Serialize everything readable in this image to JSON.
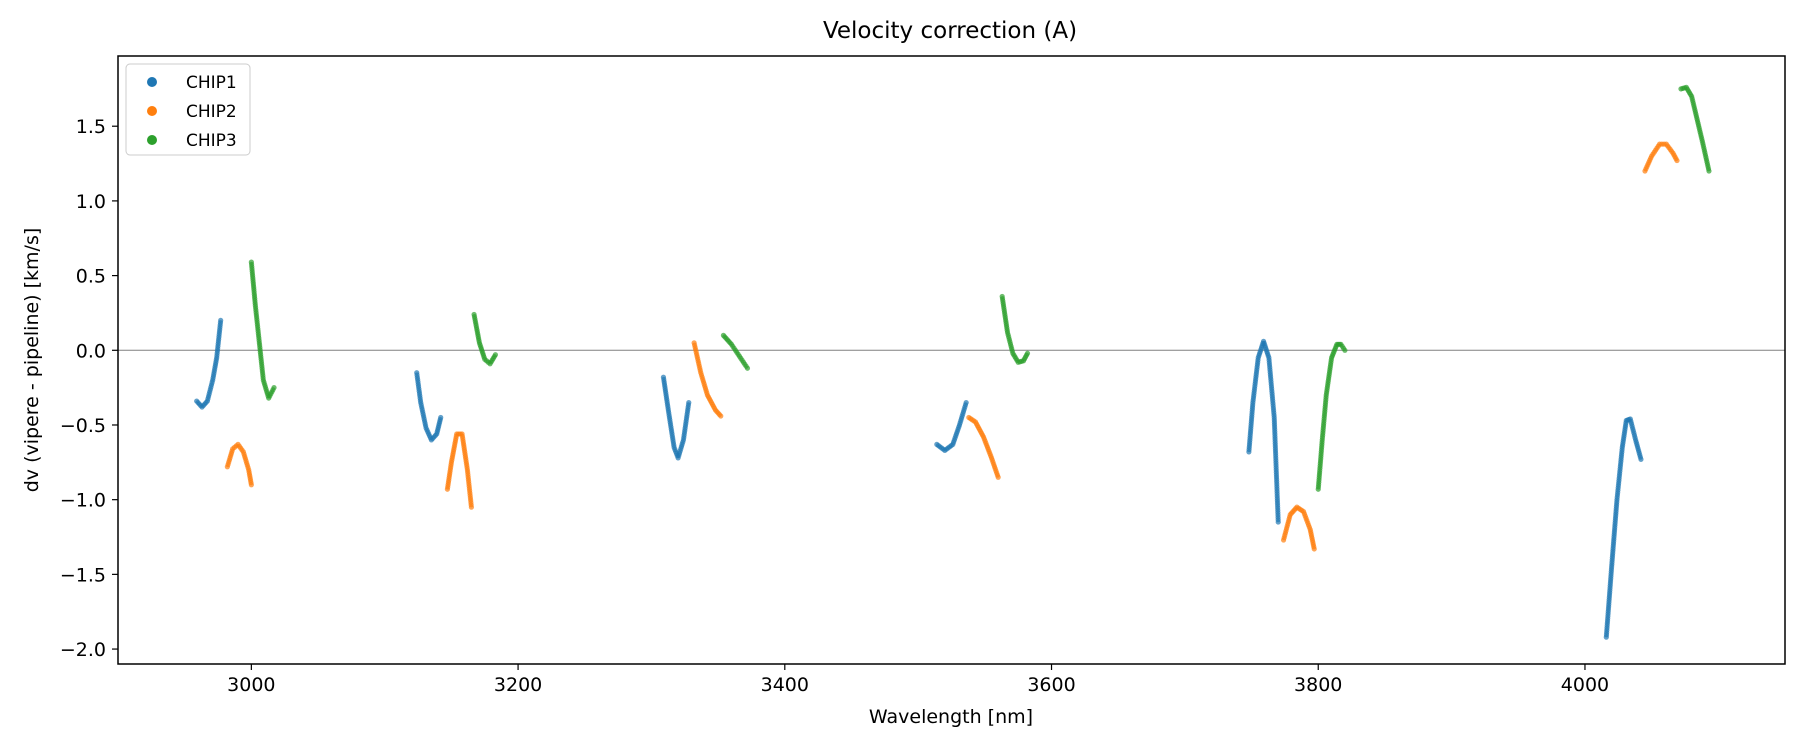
{
  "chart_data": {
    "type": "scatter",
    "title": "Velocity correction (A)",
    "xlabel": "Wavelength [nm]",
    "ylabel": "dv (vipere - pipeline) [km/s]",
    "xlim": [
      2900,
      4150
    ],
    "ylim": [
      -2.1,
      1.97
    ],
    "xticks": [
      3000,
      3200,
      3400,
      3600,
      3800,
      4000
    ],
    "yticks": [
      -2.0,
      -1.5,
      -1.0,
      -0.5,
      0.0,
      0.5,
      1.0,
      1.5
    ],
    "ytick_labels": [
      "−2.0",
      "−1.5",
      "−1.0",
      "−0.5",
      "0.0",
      "0.5",
      "1.0",
      "1.5"
    ],
    "hline": 0.0,
    "legend_position": "top-left",
    "series": [
      {
        "name": "CHIP1",
        "color": "#1f77b4",
        "segments": [
          [
            [
              2959,
              -0.34
            ],
            [
              2963,
              -0.38
            ],
            [
              2967,
              -0.34
            ],
            [
              2971,
              -0.2
            ],
            [
              2974,
              -0.05
            ],
            [
              2977,
              0.2
            ]
          ],
          [
            [
              3124,
              -0.15
            ],
            [
              3127,
              -0.35
            ],
            [
              3131,
              -0.52
            ],
            [
              3135,
              -0.6
            ],
            [
              3139,
              -0.56
            ],
            [
              3142,
              -0.45
            ]
          ],
          [
            [
              3309,
              -0.18
            ],
            [
              3313,
              -0.42
            ],
            [
              3317,
              -0.65
            ],
            [
              3320,
              -0.72
            ],
            [
              3324,
              -0.6
            ],
            [
              3328,
              -0.35
            ]
          ],
          [
            [
              3514,
              -0.63
            ],
            [
              3520,
              -0.67
            ],
            [
              3526,
              -0.63
            ],
            [
              3531,
              -0.5
            ],
            [
              3536,
              -0.35
            ]
          ],
          [
            [
              3748,
              -0.68
            ],
            [
              3751,
              -0.35
            ],
            [
              3755,
              -0.05
            ],
            [
              3759,
              0.06
            ],
            [
              3763,
              -0.05
            ],
            [
              3767,
              -0.45
            ],
            [
              3770,
              -1.15
            ]
          ],
          [
            [
              4016,
              -1.92
            ],
            [
              4020,
              -1.45
            ],
            [
              4024,
              -1.0
            ],
            [
              4028,
              -0.65
            ],
            [
              4031,
              -0.47
            ],
            [
              4034,
              -0.46
            ],
            [
              4038,
              -0.6
            ],
            [
              4042,
              -0.73
            ]
          ]
        ]
      },
      {
        "name": "CHIP2",
        "color": "#ff7f0e",
        "segments": [
          [
            [
              2982,
              -0.78
            ],
            [
              2986,
              -0.66
            ],
            [
              2990,
              -0.63
            ],
            [
              2994,
              -0.68
            ],
            [
              2998,
              -0.8
            ],
            [
              3000,
              -0.9
            ]
          ],
          [
            [
              3147,
              -0.93
            ],
            [
              3150,
              -0.75
            ],
            [
              3154,
              -0.56
            ],
            [
              3158,
              -0.56
            ],
            [
              3162,
              -0.8
            ],
            [
              3165,
              -1.05
            ]
          ],
          [
            [
              3332,
              0.05
            ],
            [
              3337,
              -0.15
            ],
            [
              3342,
              -0.3
            ],
            [
              3348,
              -0.4
            ],
            [
              3352,
              -0.44
            ]
          ],
          [
            [
              3538,
              -0.45
            ],
            [
              3543,
              -0.48
            ],
            [
              3549,
              -0.58
            ],
            [
              3555,
              -0.72
            ],
            [
              3560,
              -0.85
            ]
          ],
          [
            [
              3774,
              -1.27
            ],
            [
              3779,
              -1.1
            ],
            [
              3784,
              -1.05
            ],
            [
              3789,
              -1.08
            ],
            [
              3794,
              -1.2
            ],
            [
              3797,
              -1.33
            ]
          ],
          [
            [
              4045,
              1.2
            ],
            [
              4050,
              1.3
            ],
            [
              4056,
              1.38
            ],
            [
              4061,
              1.38
            ],
            [
              4066,
              1.32
            ],
            [
              4069,
              1.27
            ]
          ]
        ]
      },
      {
        "name": "CHIP3",
        "color": "#2ca02c",
        "segments": [
          [
            [
              3000,
              0.59
            ],
            [
              3003,
              0.3
            ],
            [
              3006,
              0.05
            ],
            [
              3009,
              -0.2
            ],
            [
              3013,
              -0.32
            ],
            [
              3017,
              -0.25
            ]
          ],
          [
            [
              3167,
              0.24
            ],
            [
              3171,
              0.05
            ],
            [
              3175,
              -0.06
            ],
            [
              3179,
              -0.09
            ],
            [
              3183,
              -0.03
            ]
          ],
          [
            [
              3354,
              0.1
            ],
            [
              3360,
              0.04
            ],
            [
              3366,
              -0.04
            ],
            [
              3372,
              -0.12
            ]
          ],
          [
            [
              3563,
              0.36
            ],
            [
              3567,
              0.12
            ],
            [
              3571,
              -0.02
            ],
            [
              3575,
              -0.08
            ],
            [
              3579,
              -0.07
            ],
            [
              3582,
              -0.02
            ]
          ],
          [
            [
              3800,
              -0.93
            ],
            [
              3803,
              -0.6
            ],
            [
              3806,
              -0.3
            ],
            [
              3810,
              -0.05
            ],
            [
              3814,
              0.04
            ],
            [
              3817,
              0.04
            ],
            [
              3820,
              0.0
            ]
          ],
          [
            [
              4072,
              1.75
            ],
            [
              4076,
              1.76
            ],
            [
              4080,
              1.7
            ],
            [
              4084,
              1.55
            ],
            [
              4088,
              1.4
            ],
            [
              4093,
              1.2
            ]
          ]
        ]
      }
    ]
  }
}
